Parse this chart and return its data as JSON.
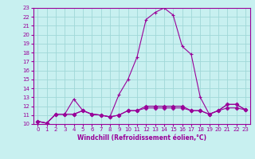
{
  "xlabel": "Windchill (Refroidissement éolien,°C)",
  "bg_color": "#c8f0f0",
  "line_color": "#990099",
  "grid_color": "#a0d8d8",
  "xlim": [
    -0.5,
    23.5
  ],
  "ylim": [
    10,
    23
  ],
  "xticks": [
    0,
    1,
    2,
    3,
    4,
    5,
    6,
    7,
    8,
    9,
    10,
    11,
    12,
    13,
    14,
    15,
    16,
    17,
    18,
    19,
    20,
    21,
    22,
    23
  ],
  "yticks": [
    10,
    11,
    12,
    13,
    14,
    15,
    16,
    17,
    18,
    19,
    20,
    21,
    22,
    23
  ],
  "series1_x": [
    0,
    1,
    2,
    3,
    4,
    5,
    6,
    7,
    8,
    9,
    10,
    11,
    12,
    13,
    14,
    15,
    16,
    17,
    18,
    19,
    20,
    21,
    22,
    23
  ],
  "series1_y": [
    10.3,
    10.1,
    11.1,
    11.1,
    12.8,
    11.5,
    11.1,
    11.0,
    10.8,
    13.3,
    15.0,
    17.5,
    21.7,
    22.5,
    23.0,
    22.2,
    18.7,
    17.8,
    13.0,
    11.1,
    11.5,
    12.2,
    12.2,
    11.6
  ],
  "series2_x": [
    0,
    1,
    2,
    3,
    4,
    5,
    6,
    7,
    8,
    9,
    10,
    11,
    12,
    13,
    14,
    15,
    16,
    17,
    18,
    19,
    20,
    21,
    22,
    23
  ],
  "series2_y": [
    10.3,
    10.1,
    11.1,
    11.1,
    11.1,
    11.5,
    11.1,
    11.0,
    10.8,
    11.0,
    11.5,
    11.5,
    12.0,
    12.0,
    12.0,
    12.0,
    12.0,
    11.5,
    11.5,
    11.1,
    11.5,
    12.2,
    12.2,
    11.6
  ],
  "series3_x": [
    0,
    1,
    2,
    3,
    4,
    5,
    6,
    7,
    8,
    9,
    10,
    11,
    12,
    13,
    14,
    15,
    16,
    17,
    18,
    19,
    20,
    21,
    22,
    23
  ],
  "series3_y": [
    10.3,
    10.1,
    11.1,
    11.1,
    11.1,
    11.5,
    11.1,
    11.0,
    10.8,
    11.0,
    11.5,
    11.5,
    11.8,
    11.8,
    11.8,
    11.8,
    11.8,
    11.5,
    11.5,
    11.1,
    11.5,
    11.8,
    11.8,
    11.6
  ],
  "tick_fontsize": 5,
  "xlabel_fontsize": 5.5,
  "marker_size": 2.5,
  "linewidth": 0.8
}
